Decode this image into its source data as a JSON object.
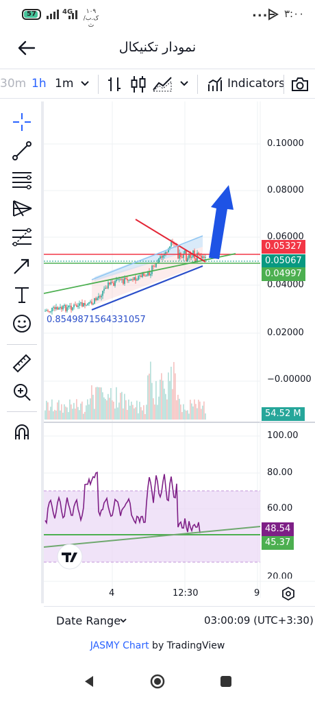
{
  "status": {
    "battery": "57",
    "network": "4G",
    "data_speed": "۱۰۹ ک.ب/ث",
    "time": "۳:۰۰",
    "more": "..."
  },
  "header": {
    "title": "نمودار تکنیکال"
  },
  "toolbar": {
    "intervals": [
      "30m",
      "1h",
      "1m"
    ],
    "indicators_label": "Indicators"
  },
  "chart": {
    "price_labels": [
      "0.10000",
      "0.08000",
      "0.06000",
      "0.04000",
      "0.02000",
      "−0.00000"
    ],
    "badges": {
      "red": "0.05327",
      "teal": "0.05067",
      "green": "0.04997",
      "volume": "54.52 M"
    },
    "annotation": "0.8549871564331057",
    "rsi_labels": [
      "100.00",
      "80.00",
      "60.00",
      "20.00"
    ],
    "rsi_badges": {
      "purple": "48.54",
      "green": "45.37"
    },
    "time_labels": [
      "4",
      "12:30",
      "9"
    ],
    "logo": "17"
  },
  "footer": {
    "date_range_label": "Date Range",
    "clock": "03:00:09 (UTC+3:30)"
  },
  "attribution": {
    "symbol_chart": "JASMY Chart",
    "by": " by TradingView"
  },
  "colors": {
    "accent": "#2962ff",
    "red_line": "#f23645",
    "teal": "#089981",
    "green": "#4caf50",
    "rsi_purple": "#7e1f86",
    "arrow_blue": "#1e53e5"
  }
}
